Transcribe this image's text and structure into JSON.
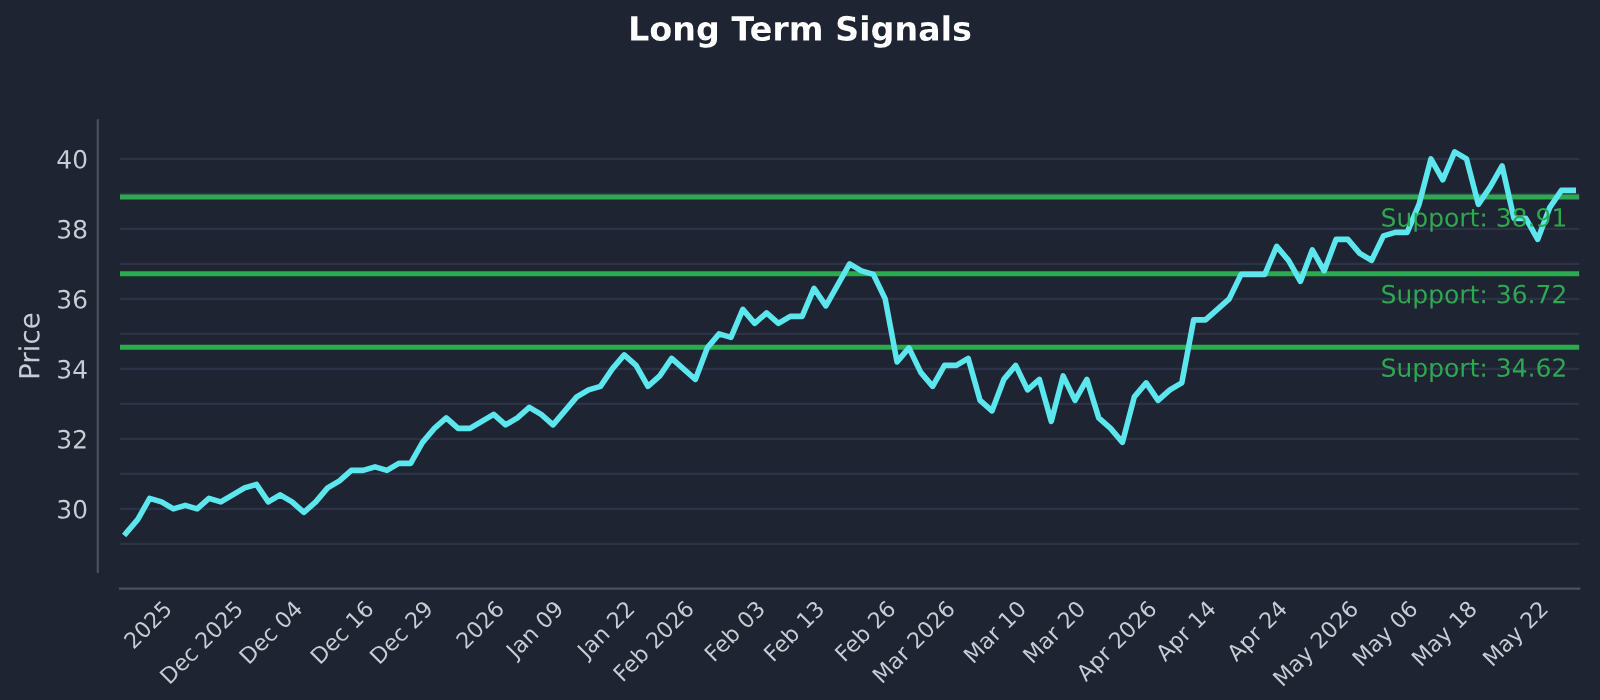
{
  "chart_data": {
    "type": "line",
    "title": "Long Term Signals",
    "ylabel": "Price",
    "categories": [
      null,
      null,
      null,
      "2025",
      null,
      null,
      null,
      null,
      null,
      "Dec 2025",
      null,
      null,
      null,
      null,
      "Dec 04",
      null,
      null,
      null,
      null,
      null,
      "Dec 16",
      null,
      null,
      null,
      null,
      "Dec 29",
      null,
      null,
      null,
      null,
      null,
      "2026",
      null,
      null,
      null,
      null,
      "Jan 09",
      null,
      null,
      null,
      null,
      null,
      "Jan 22",
      null,
      null,
      null,
      null,
      "Feb 2026",
      null,
      null,
      null,
      null,
      null,
      "Feb 03",
      null,
      null,
      null,
      null,
      "Feb 13",
      null,
      null,
      null,
      null,
      null,
      "Feb 26",
      null,
      null,
      null,
      null,
      "Mar 2026",
      null,
      null,
      null,
      null,
      null,
      "Mar 10",
      null,
      null,
      null,
      null,
      "Mar 20",
      null,
      null,
      null,
      null,
      null,
      "Apr 2026",
      null,
      null,
      null,
      null,
      "Apr 14",
      null,
      null,
      null,
      null,
      null,
      "Apr 24",
      null,
      null,
      null,
      null,
      null,
      "May 2026",
      null,
      null,
      null,
      null,
      "May 06",
      null,
      null,
      null,
      null,
      "May 18",
      null,
      null,
      null,
      null,
      null,
      "May 22",
      null,
      null,
      null
    ],
    "series": [
      {
        "color": "#5ce6ee",
        "values": [
          29.3,
          29.7,
          30.3,
          30.2,
          30.0,
          30.1,
          30.0,
          30.3,
          30.2,
          30.4,
          30.6,
          30.7,
          30.2,
          30.4,
          30.2,
          29.9,
          30.2,
          30.6,
          30.8,
          31.1,
          31.1,
          31.2,
          31.1,
          31.3,
          31.3,
          31.9,
          32.3,
          32.6,
          32.3,
          32.3,
          32.5,
          32.7,
          32.4,
          32.6,
          32.9,
          32.7,
          32.4,
          32.8,
          33.2,
          33.4,
          33.5,
          34.0,
          34.4,
          34.1,
          33.5,
          33.8,
          34.3,
          34.0,
          33.7,
          34.6,
          35.0,
          34.9,
          35.7,
          35.3,
          35.6,
          35.3,
          35.5,
          35.5,
          36.3,
          35.8,
          36.4,
          37.0,
          36.8,
          36.7,
          36.0,
          34.2,
          34.6,
          33.9,
          33.5,
          34.1,
          34.1,
          34.3,
          33.1,
          32.8,
          33.7,
          34.1,
          33.4,
          33.7,
          32.5,
          33.8,
          33.1,
          33.7,
          32.6,
          32.3,
          31.9,
          33.2,
          33.6,
          33.1,
          33.4,
          33.6,
          35.4,
          35.4,
          35.7,
          36.0,
          36.7,
          36.7,
          36.7,
          37.5,
          37.1,
          36.5,
          37.4,
          36.8,
          37.7,
          37.7,
          37.3,
          37.1,
          37.8,
          37.9,
          37.9,
          38.7,
          40.0,
          39.4,
          40.2,
          40.0,
          38.7,
          39.2,
          39.8,
          38.3,
          38.3,
          37.7,
          38.6,
          39.1,
          39.1
        ]
      }
    ],
    "ylim": [
      28.2,
      41.1
    ],
    "yticks": [
      {
        "value": 29,
        "label": null
      },
      30,
      {
        "value": 31,
        "label": null
      },
      32,
      {
        "value": 33,
        "label": null
      },
      34,
      {
        "value": 35,
        "label": null
      },
      36,
      {
        "value": 37,
        "label": null
      },
      38,
      {
        "value": 39,
        "label": null
      },
      40
    ],
    "grid": "y",
    "ref_lines": [
      {
        "axis": "y",
        "value": 38.91,
        "label": "Support: 38.91",
        "color": "#2ea851"
      },
      {
        "axis": "y",
        "value": 36.72,
        "label": "Support: 36.72",
        "color": "#2ea851"
      },
      {
        "axis": "y",
        "value": 34.62,
        "label": "Support: 34.62",
        "color": "#2ea851"
      }
    ]
  }
}
